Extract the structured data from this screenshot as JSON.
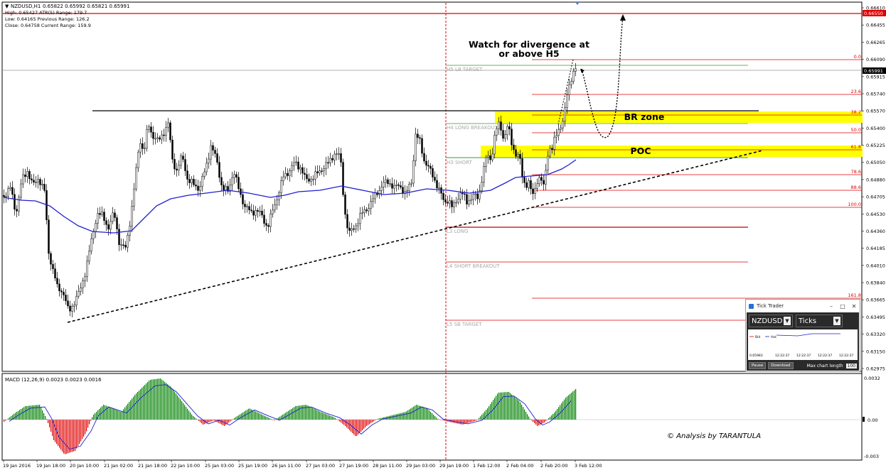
{
  "header": {
    "symbol": "NZDUSD,H1",
    "ohlc": "0.65822 0.65992 0.65821 0.65991",
    "high_line": "High:  0.65427    ATR(5) Range: 179.7",
    "low_line": "Low:   0.64165    Previous Range: 126.2",
    "close_line": "Close: 0.64758    Current Range: 159.9"
  },
  "price_scale": {
    "ticks": [
      "0.66610",
      "0.66455",
      "0.66265",
      "0.66090",
      "0.65915",
      "0.65740",
      "0.65570",
      "0.65400",
      "0.65225",
      "0.65050",
      "0.64880",
      "0.64705",
      "0.64530",
      "0.64360",
      "0.64185",
      "0.64010",
      "0.63840",
      "0.63665",
      "0.63495",
      "0.63320",
      "0.63150",
      "0.62975"
    ],
    "red_tag": "0.66550",
    "current_tag": "0.65991"
  },
  "levels": {
    "h5": "H5 LB TARGET",
    "h4": "H4 LONG BREAKOUT",
    "h3": "H3 SHORT",
    "l3": "L3 LONG",
    "l4": "L4 SHORT BREAKOUT",
    "l5": "L5 SB TARGET"
  },
  "fib_labels": [
    "0.0",
    "23.6",
    "38.2",
    "50.0",
    "61.8",
    "78.6",
    "88.6",
    "100.0",
    "161.8"
  ],
  "annotations": {
    "divergence_line1": "Watch for divergence at",
    "divergence_line2": "or above H5",
    "br_zone": "BR zone",
    "poc": "POC",
    "signature": "© Analysis by TARANTULA"
  },
  "macd": {
    "label": "MACD (12,26,9) 0.0023 0.0023 0.0016",
    "ticks": [
      "0.0032",
      "0.00",
      "-0.003"
    ]
  },
  "time_axis": [
    "19 Jan 2016",
    "19 Jan 18:00",
    "20 Jan 10:00",
    "21 Jan 02:00",
    "21 Jan 18:00",
    "22 Jan 10:00",
    "25 Jan 03:00",
    "25 Jan 19:00",
    "26 Jan 11:00",
    "27 Jan 03:00",
    "27 Jan 19:00",
    "28 Jan 11:00",
    "29 Jan 03:00",
    "29 Jan 19:00",
    "1 Feb 12:00",
    "2 Feb 04:00",
    "2 Feb 20:00",
    "3 Feb 12:00"
  ],
  "tick_trader": {
    "title": "Tick Trader",
    "symbol": "NZDUSD",
    "mode": "Ticks",
    "legend_bid": "Bid",
    "legend_ask": "Ask",
    "price": "0.65983",
    "times": [
      "12:22:37",
      "12:22:37",
      "12:22:37",
      "12:22:37"
    ],
    "pause": "Pause",
    "download": "Download",
    "max_label": "Max chart length",
    "max_value": "100"
  },
  "colors": {
    "ma": "#1f1fd0",
    "macd_up": "#008000",
    "macd_down": "#e00000",
    "zone": "#ffff00",
    "fib": "#e00000"
  }
}
